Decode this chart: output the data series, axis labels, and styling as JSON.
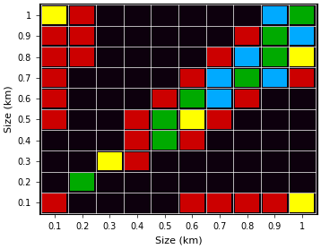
{
  "xlabel": "Size (km)",
  "ylabel": "Size (km)",
  "xticks": [
    0.1,
    0.2,
    0.3,
    0.4,
    0.5,
    0.6,
    0.7,
    0.8,
    0.9,
    1.0
  ],
  "yticks": [
    0.1,
    0.2,
    0.3,
    0.4,
    0.5,
    0.6,
    0.7,
    0.8,
    0.9,
    1.0
  ],
  "cell_size": 0.1,
  "color_map": {
    "K": "#0d000d",
    "R": "#cc0000",
    "G": "#00aa00",
    "Y": "#ffff00",
    "C": "#00aaff"
  },
  "grid_rows": [
    [
      "Y",
      "R",
      "K",
      "K",
      "K",
      "K",
      "K",
      "K",
      "C",
      "G"
    ],
    [
      "R",
      "R",
      "K",
      "K",
      "K",
      "K",
      "K",
      "R",
      "G",
      "C"
    ],
    [
      "R",
      "R",
      "K",
      "K",
      "K",
      "K",
      "R",
      "C",
      "G",
      "Y"
    ],
    [
      "R",
      "K",
      "K",
      "K",
      "K",
      "R",
      "C",
      "G",
      "C",
      "R"
    ],
    [
      "R",
      "K",
      "K",
      "K",
      "R",
      "G",
      "C",
      "R",
      "K",
      "K"
    ],
    [
      "R",
      "K",
      "K",
      "R",
      "G",
      "Y",
      "R",
      "K",
      "K",
      "K"
    ],
    [
      "K",
      "K",
      "K",
      "R",
      "G",
      "R",
      "K",
      "K",
      "K",
      "K"
    ],
    [
      "K",
      "K",
      "Y",
      "R",
      "K",
      "K",
      "K",
      "K",
      "K",
      "K"
    ],
    [
      "K",
      "G",
      "K",
      "K",
      "K",
      "K",
      "K",
      "K",
      "K",
      "K"
    ],
    [
      "R",
      "K",
      "K",
      "K",
      "K",
      "R",
      "R",
      "R",
      "R",
      "Y"
    ]
  ]
}
